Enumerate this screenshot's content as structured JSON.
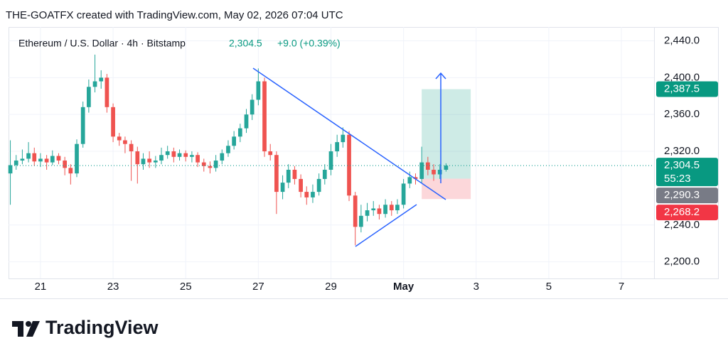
{
  "chart_data": {
    "type": "candlestick",
    "credit": "THE-GOATFX created with TradingView.com, May 02, 2026 07:04 UTC",
    "title": "Ethereum / U.S. Dollar · 4h · Bitstamp",
    "last_price": {
      "value": 2304.5,
      "label": "2,304.5"
    },
    "change": "+9.0 (+0.39%)",
    "countdown": "55:23",
    "brand": "TradingView",
    "up_color": "#26a69a",
    "down_color": "#ef5350",
    "grid": true,
    "xlim": [
      20.12,
      37.9
    ],
    "xticks": [
      21,
      23,
      25,
      27,
      29,
      {
        "value": 31,
        "label": "May"
      },
      {
        "value": 33,
        "label": "3"
      },
      {
        "value": 35,
        "label": "5"
      },
      {
        "value": 37,
        "label": "7"
      }
    ],
    "ylim": [
      2182,
      2455
    ],
    "yticks": [
      {
        "value": 2440,
        "label": "2,440.0"
      },
      {
        "value": 2400,
        "label": "2,400.0"
      },
      {
        "value": 2360,
        "label": "2,360.0"
      },
      {
        "value": 2320,
        "label": "2,320.0"
      },
      {
        "value": 2240,
        "label": "2,240.0"
      },
      {
        "value": 2200,
        "label": "2,200.0"
      }
    ],
    "position": {
      "x": [
        31.5,
        32.85
      ],
      "target": {
        "value": 2387.5,
        "label": "2,387.5"
      },
      "entry": {
        "value": 2290.3,
        "label": "2,290.3"
      },
      "stop": {
        "value": 2268.2,
        "label": "2,268.2"
      }
    },
    "x": [
      20.17,
      20.33,
      20.5,
      20.67,
      20.83,
      21,
      21.17,
      21.33,
      21.5,
      21.67,
      21.83,
      22,
      22.17,
      22.33,
      22.5,
      22.67,
      22.83,
      23,
      23.17,
      23.33,
      23.5,
      23.67,
      23.83,
      24,
      24.17,
      24.33,
      24.5,
      24.67,
      24.83,
      25,
      25.17,
      25.33,
      25.5,
      25.67,
      25.83,
      26,
      26.17,
      26.33,
      26.5,
      26.67,
      26.83,
      27,
      27.17,
      27.33,
      27.5,
      27.67,
      27.83,
      28,
      28.17,
      28.33,
      28.5,
      28.67,
      28.83,
      29,
      29.17,
      29.33,
      29.5,
      29.67,
      29.83,
      30,
      30.17,
      30.33,
      30.5,
      30.67,
      30.83,
      31,
      31.17,
      31.33,
      31.5,
      31.67,
      31.83,
      32,
      32.17
    ],
    "open": [
      2296,
      2305,
      2310,
      2312,
      2318,
      2309,
      2312,
      2308,
      2315,
      2310,
      2302,
      2296,
      2328,
      2368,
      2390,
      2396,
      2400,
      2368,
      2336,
      2332,
      2328,
      2320,
      2306,
      2312,
      2308,
      2310,
      2316,
      2320,
      2314,
      2318,
      2314,
      2316,
      2308,
      2304,
      2302,
      2310,
      2318,
      2326,
      2336,
      2345,
      2360,
      2376,
      2396,
      2320,
      2316,
      2276,
      2286,
      2300,
      2290,
      2276,
      2270,
      2276,
      2290,
      2300,
      2320,
      2330,
      2338,
      2272,
      2238,
      2250,
      2256,
      2258,
      2252,
      2262,
      2256,
      2262,
      2285,
      2292,
      2290,
      2308,
      2300,
      2295,
      2300
    ],
    "high": [
      2332,
      2316,
      2322,
      2330,
      2324,
      2318,
      2316,
      2321,
      2318,
      2314,
      2306,
      2333,
      2374,
      2398,
      2425,
      2408,
      2404,
      2372,
      2340,
      2336,
      2332,
      2325,
      2318,
      2320,
      2315,
      2324,
      2326,
      2324,
      2322,
      2321,
      2320,
      2319,
      2312,
      2309,
      2316,
      2322,
      2332,
      2342,
      2350,
      2366,
      2382,
      2410,
      2400,
      2328,
      2320,
      2294,
      2306,
      2304,
      2295,
      2282,
      2284,
      2296,
      2306,
      2328,
      2338,
      2346,
      2342,
      2276,
      2262,
      2264,
      2266,
      2262,
      2268,
      2266,
      2268,
      2290,
      2298,
      2296,
      2325,
      2314,
      2306,
      2306,
      2307
    ],
    "low": [
      2262,
      2300,
      2306,
      2308,
      2304,
      2303,
      2300,
      2305,
      2306,
      2294,
      2284,
      2292,
      2324,
      2362,
      2384,
      2388,
      2362,
      2330,
      2326,
      2318,
      2288,
      2285,
      2300,
      2302,
      2302,
      2306,
      2312,
      2308,
      2310,
      2309,
      2308,
      2303,
      2298,
      2296,
      2298,
      2306,
      2314,
      2322,
      2330,
      2340,
      2354,
      2370,
      2314,
      2310,
      2252,
      2268,
      2280,
      2284,
      2270,
      2262,
      2264,
      2272,
      2284,
      2294,
      2314,
      2324,
      2266,
      2218,
      2232,
      2244,
      2250,
      2246,
      2248,
      2250,
      2252,
      2258,
      2280,
      2284,
      2286,
      2294,
      2288,
      2290,
      2298
    ],
    "close": [
      2305,
      2310,
      2312,
      2318,
      2309,
      2312,
      2308,
      2315,
      2310,
      2302,
      2296,
      2328,
      2368,
      2390,
      2396,
      2400,
      2368,
      2336,
      2332,
      2328,
      2320,
      2306,
      2312,
      2308,
      2310,
      2316,
      2320,
      2314,
      2318,
      2314,
      2316,
      2308,
      2304,
      2302,
      2310,
      2318,
      2326,
      2336,
      2345,
      2360,
      2376,
      2396,
      2320,
      2316,
      2276,
      2286,
      2300,
      2290,
      2276,
      2270,
      2276,
      2290,
      2300,
      2320,
      2330,
      2338,
      2272,
      2238,
      2250,
      2256,
      2258,
      2252,
      2262,
      2256,
      2262,
      2285,
      2292,
      2290,
      2308,
      2300,
      2295,
      2300,
      2304.5
    ]
  }
}
